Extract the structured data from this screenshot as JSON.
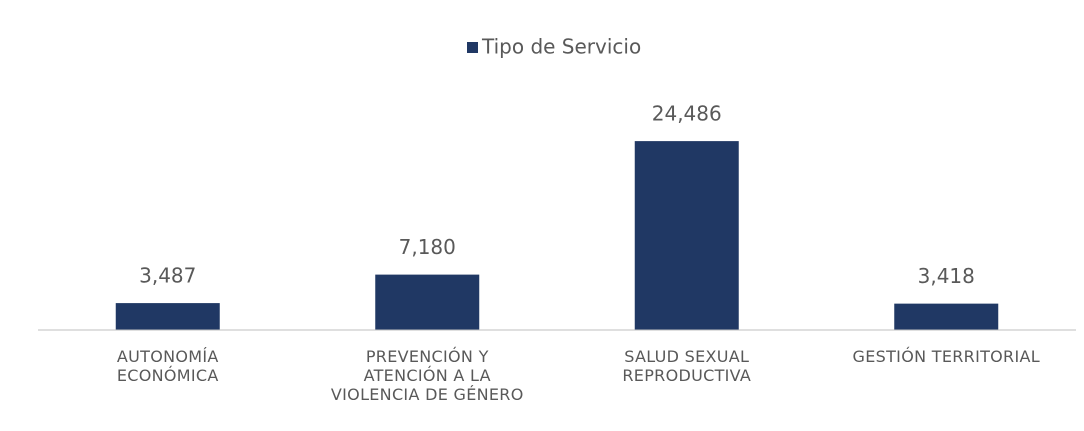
{
  "chart_data": {
    "type": "bar",
    "categories": [
      "AUTONOMÍA\nECONÓMICA",
      "PREVENCIÓN Y\nATENCIÓN A LA\nVIOLENCIA DE GÉNERO",
      "SALUD SEXUAL\nREPRODUCTIVA",
      "GESTIÓN TERRITORIAL"
    ],
    "series": [
      {
        "name": "Tipo de Servicio",
        "color": "#203864",
        "values": [
          3487,
          7180,
          24486,
          3418
        ],
        "value_labels": [
          "3,487",
          "7,180",
          "24,486",
          "3,418"
        ]
      }
    ],
    "ylim": [
      0,
      28000
    ],
    "legend": "top"
  }
}
